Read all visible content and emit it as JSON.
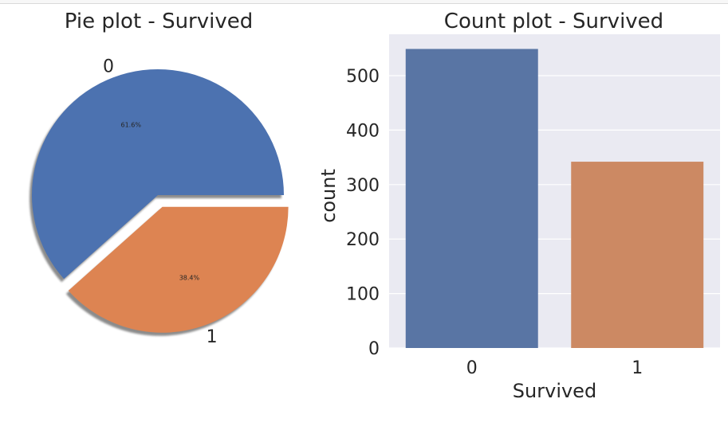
{
  "chart_data": [
    {
      "type": "pie",
      "title": "Pie plot - Survived",
      "labels": [
        "0",
        "1"
      ],
      "values": [
        61.6,
        38.4
      ],
      "autopct_labels": [
        "61.6%",
        "38.4%"
      ],
      "explode": [
        0,
        0.1
      ],
      "shadow": true,
      "colors": [
        "#4c72b0",
        "#dd8452"
      ]
    },
    {
      "type": "bar",
      "title": "Count plot - Survived",
      "categories": [
        "0",
        "1"
      ],
      "values": [
        549,
        342
      ],
      "xlabel": "Survived",
      "ylabel": "count",
      "ylim": [
        0,
        576
      ],
      "yticks": [
        0,
        100,
        200,
        300,
        400,
        500
      ],
      "ytick_labels": [
        "0",
        "100",
        "200",
        "300",
        "400",
        "500"
      ],
      "grid": true,
      "background": "#eaeaf2",
      "colors": [
        "#5975a4",
        "#cc8963"
      ]
    }
  ]
}
